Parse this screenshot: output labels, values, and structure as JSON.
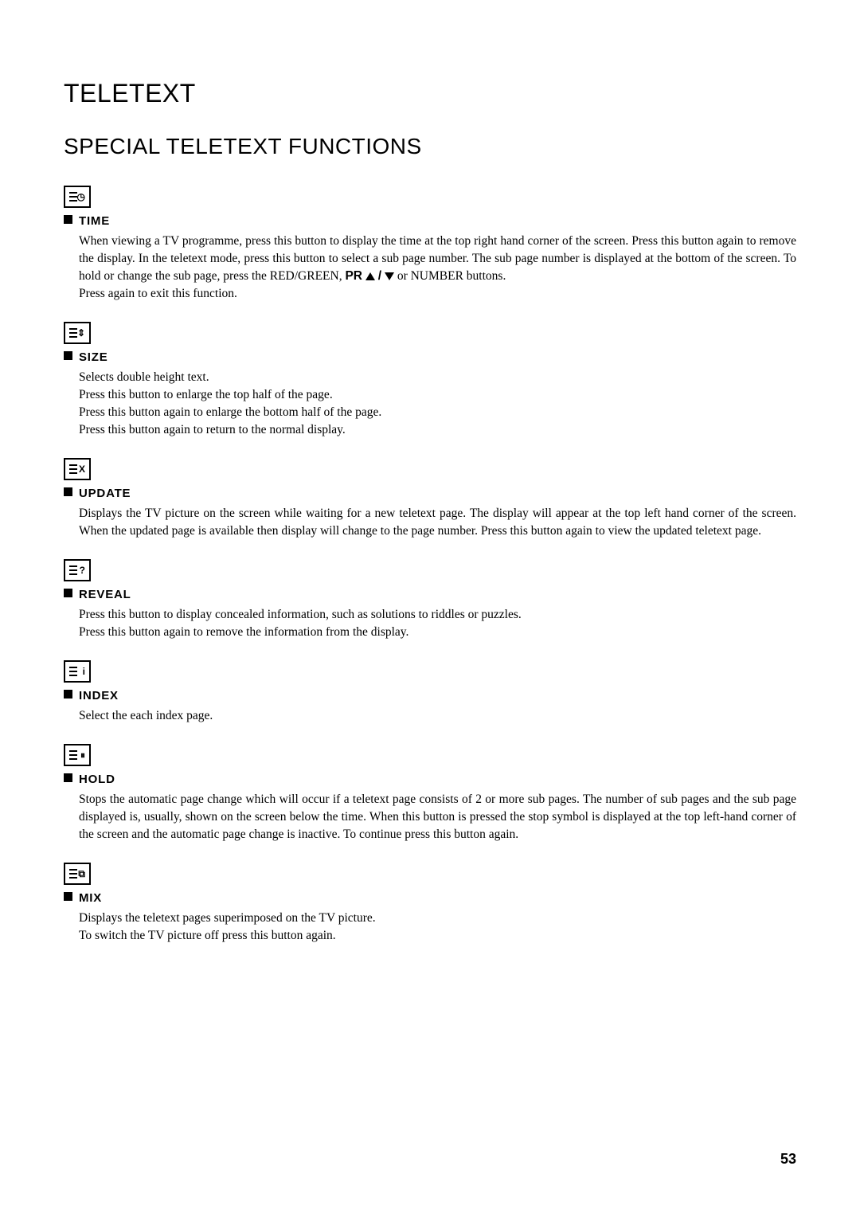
{
  "page": {
    "title": "TELETEXT",
    "subtitle": "SPECIAL TELETEXT FUNCTIONS",
    "page_number": "53"
  },
  "sections": [
    {
      "heading": "TIME",
      "icon": "time-icon",
      "glyph": "◷",
      "body_html": "When viewing a TV programme, press this button to display the time at the top right hand corner of the screen. Press this button again to remove the display. In the teletext mode, press this button to select a sub page number. The sub page number is displayed at the bottom of the screen. To hold or change the sub page, press the RED/GREEN, <span class='pr-sym'>PR</span> <span class='tri-up'></span> <span class='pr-sym'>/</span> <span class='tri-down'></span> or NUMBER buttons.<br>Press again to exit this function."
    },
    {
      "heading": "SIZE",
      "icon": "size-icon",
      "glyph": "⇕",
      "body_html": "Selects double height text.<br>Press this button to enlarge the top half of the page.<br>Press this button again to enlarge the bottom half of the page.<br>Press this button again to return to the normal display."
    },
    {
      "heading": "UPDATE",
      "icon": "update-icon",
      "glyph": "X",
      "body_html": "Displays the TV picture on the screen while waiting for a new teletext page. The display will appear at the top left hand corner of the screen. When the updated page is available then display will change to the page number. Press this button again to view the updated teletext page."
    },
    {
      "heading": "REVEAL",
      "icon": "reveal-icon",
      "glyph": "?",
      "body_html": "Press this button to display concealed information, such as solutions to riddles or puzzles.<br>Press this button again to remove the information from the display."
    },
    {
      "heading": "INDEX",
      "icon": "index-icon",
      "glyph": "i",
      "body_html": "Select the each index page."
    },
    {
      "heading": "HOLD",
      "icon": "hold-icon",
      "glyph": "⏸",
      "body_html": "Stops the automatic page change which will occur if a teletext page consists of 2 or more sub pages. The number of sub pages and the sub page displayed is, usually, shown on the screen below the time. When this button is pressed the stop symbol is displayed at the top left-hand corner of the screen and the automatic page change is inactive. To continue press this button again."
    },
    {
      "heading": "MIX",
      "icon": "mix-icon",
      "glyph": "⧉",
      "body_html": "Displays the teletext pages superimposed on the TV picture.<br>To switch the TV picture off press this button again."
    }
  ],
  "style": {
    "background": "#ffffff",
    "text_color": "#000000",
    "title_fontsize": 32,
    "subtitle_fontsize": 28,
    "heading_fontsize": 15,
    "body_fontsize": 15.5
  }
}
